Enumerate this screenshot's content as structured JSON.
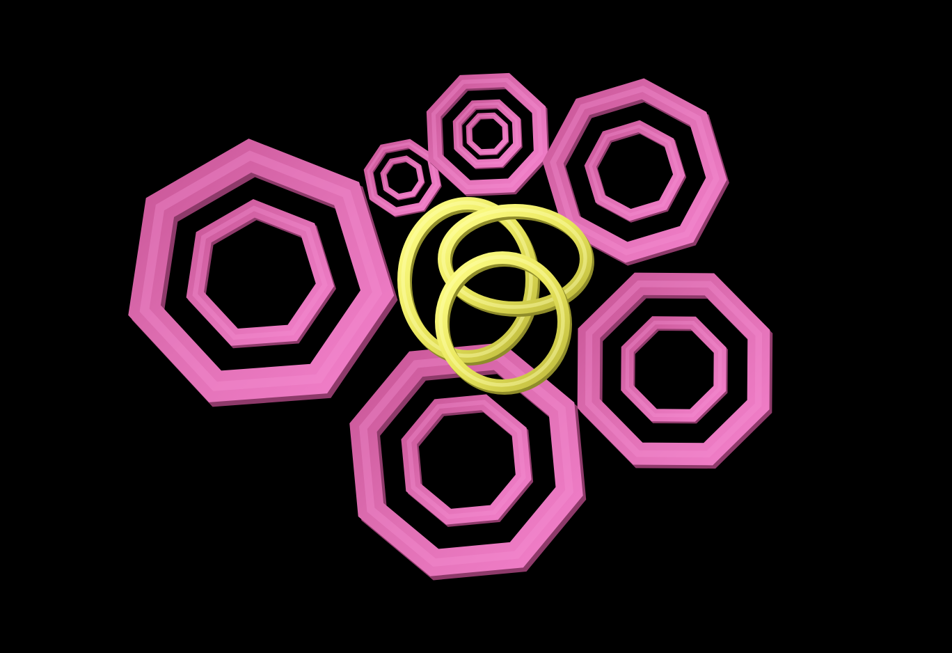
{
  "scene": {
    "background": "#000000",
    "colors": {
      "pink_mid": "#d35c9f",
      "pink_light": "#f07cc6",
      "pink_dark": "#a8457d",
      "yellow_mid": "#e6e45a",
      "yellow_light": "#ffff88",
      "yellow_dark": "#b7b43a"
    },
    "objects": [
      {
        "name": "pink-octagon-ring-large-left",
        "shape": "octagonal-tube-ring",
        "color": "pink",
        "nested_rings": 2
      },
      {
        "name": "pink-octagon-ring-small-top-left",
        "shape": "octagonal-tube-ring",
        "color": "pink",
        "nested_rings": 2
      },
      {
        "name": "pink-octagon-ring-top-center",
        "shape": "octagonal-tube-ring",
        "color": "pink",
        "nested_rings": 3
      },
      {
        "name": "pink-octagon-ring-top-right",
        "shape": "octagonal-tube-ring",
        "color": "pink",
        "nested_rings": 2
      },
      {
        "name": "pink-octagon-ring-right",
        "shape": "octagonal-tube-ring",
        "color": "pink",
        "nested_rings": 2
      },
      {
        "name": "pink-octagon-ring-bottom-center",
        "shape": "octagonal-tube-ring",
        "color": "pink",
        "nested_rings": 2
      },
      {
        "name": "yellow-interlocked-rings-center",
        "shape": "torus-knot-rings",
        "color": "yellow",
        "rings": 3
      }
    ]
  }
}
